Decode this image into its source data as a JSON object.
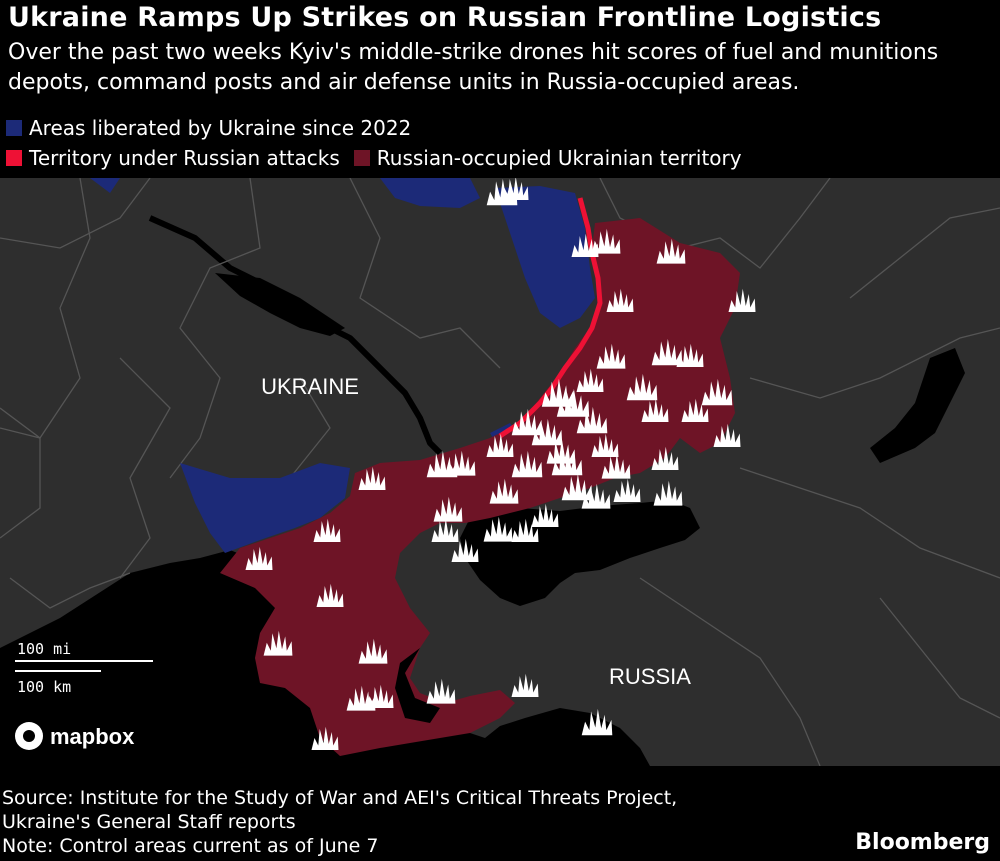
{
  "title": "Ukraine Ramps Up Strikes on Russian Frontline Logistics",
  "subtitle": "Over the past two weeks Kyiv's middle-strike drones hit scores of fuel and munitions depots, command posts and air defense units in Russia-occupied areas.",
  "legend": {
    "liberated": {
      "label": "Areas liberated by Ukraine since 2022",
      "color": "#1c2a78"
    },
    "attacks": {
      "label": "Territory under Russian attacks",
      "color": "#ee1135"
    },
    "occupied": {
      "label": "Russian-occupied Ukrainian territory",
      "color": "#6e1426"
    }
  },
  "map": {
    "labels": {
      "ukraine": "UKRAINE",
      "russia": "RUSSIA"
    },
    "scale": {
      "miles": "100 mi",
      "km": "100 km"
    },
    "attribution": "mapbox",
    "marker_icon": "explosion-icon",
    "colors": {
      "land": "#2e2e2e",
      "water": "#000000",
      "border": "#555555",
      "marker": "#ffffff"
    }
  },
  "footer": {
    "source_line1": "Source: Institute for the Study of War and AEI's Critical Threats Project,",
    "source_line2": "Ukraine's General Staff reports",
    "note": "Note: Control areas current as of June 7"
  },
  "brand": "Bloomberg"
}
